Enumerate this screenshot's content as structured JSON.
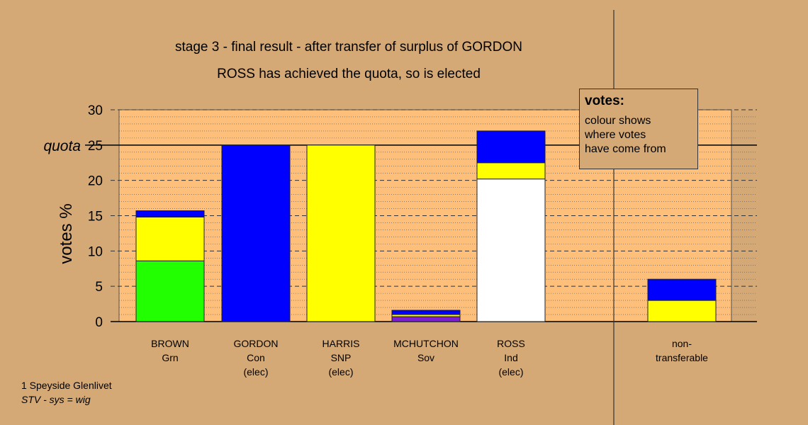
{
  "chart_data": {
    "type": "bar",
    "stacked": true,
    "title": "stage 3 - final result - after transfer of surplus of GORDON",
    "subtitle": "ROSS has achieved the quota, so is elected",
    "ylabel": "votes %",
    "ylim": [
      0,
      30
    ],
    "yticks": [
      "0",
      "5",
      "10",
      "15",
      "20",
      "25",
      "30"
    ],
    "quota_label": "quota",
    "quota": 25,
    "grid": "dashed every 5, dotted every 1",
    "categories": [
      {
        "name": "BROWN",
        "party": "Grn",
        "status": ""
      },
      {
        "name": "GORDON",
        "party": "Con",
        "status": "(elec)"
      },
      {
        "name": "HARRIS",
        "party": "SNP",
        "status": "(elec)"
      },
      {
        "name": "MCHUTCHON",
        "party": "Sov",
        "status": ""
      },
      {
        "name": "ROSS",
        "party": "Ind",
        "status": "(elec)"
      },
      {
        "name": "non-",
        "party": "transferable",
        "status": ""
      }
    ],
    "bars": [
      [
        {
          "color": "#22ff00",
          "value": 8.6
        },
        {
          "color": "#ffff00",
          "value": 6.2
        },
        {
          "color": "#0000ff",
          "value": 0.9
        }
      ],
      [
        {
          "color": "#0000ff",
          "value": 25.0
        }
      ],
      [
        {
          "color": "#ffff00",
          "value": 25.0
        }
      ],
      [
        {
          "color": "#7b1fd0",
          "value": 0.7
        },
        {
          "color": "#ffff00",
          "value": 0.3
        },
        {
          "color": "#0000ff",
          "value": 0.6
        }
      ],
      [
        {
          "color": "#ffffff",
          "value": 20.2
        },
        {
          "color": "#ffff00",
          "value": 2.3
        },
        {
          "color": "#0000ff",
          "value": 4.5
        }
      ],
      [
        {
          "color": "#ffff00",
          "value": 3.0
        },
        {
          "color": "#0000ff",
          "value": 3.0
        }
      ]
    ]
  },
  "legend": {
    "title": "votes:",
    "lines": [
      "colour shows",
      "where votes",
      "have come from"
    ]
  },
  "footer": {
    "line1": "1 Speyside Glenlivet",
    "line2": "STV - sys = wig"
  }
}
